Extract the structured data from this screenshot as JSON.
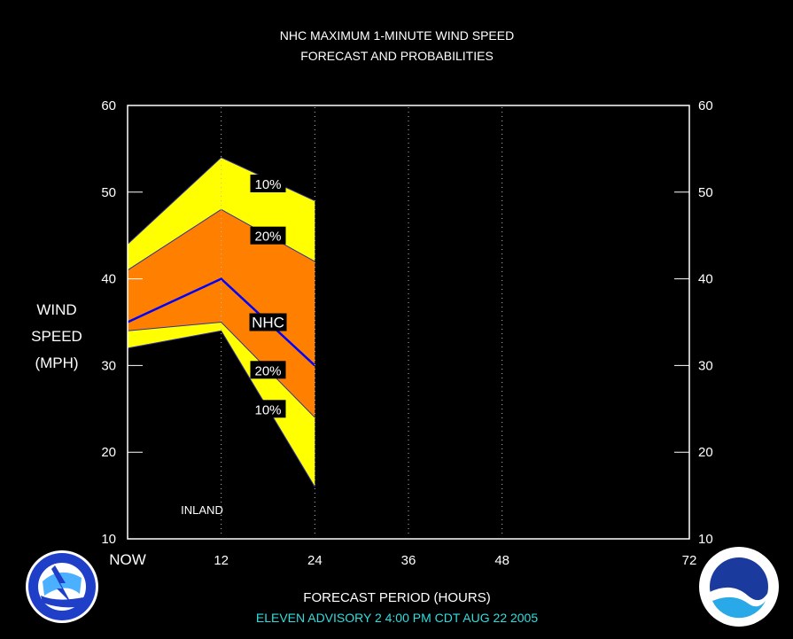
{
  "title_line1": "NHC MAXIMUM 1-MINUTE WIND SPEED",
  "title_line2": "FORECAST AND PROBABILITIES",
  "ylabel_lines": [
    "WIND",
    "SPEED",
    "(MPH)"
  ],
  "xlabel": "FORECAST PERIOD (HOURS)",
  "footer": "ELEVEN    ADVISORY  2  4:00  PM  CDT  AUG  22  2005",
  "annotation": "INLAND",
  "chart_data": {
    "type": "area",
    "x_ticks": [
      0,
      12,
      24,
      36,
      48,
      72
    ],
    "x_tick_labels": [
      "NOW",
      "12",
      "24",
      "36",
      "48",
      "72"
    ],
    "y_ticks": [
      10,
      20,
      30,
      40,
      50,
      60
    ],
    "xlim": [
      0,
      72
    ],
    "ylim": [
      10,
      60
    ],
    "x": [
      0,
      12,
      24
    ],
    "series": [
      {
        "name": "10%",
        "band": "upper",
        "values": [
          44,
          54,
          49
        ]
      },
      {
        "name": "20%",
        "band": "upper",
        "values": [
          41,
          48,
          42
        ]
      },
      {
        "name": "NHC",
        "values": [
          35,
          40,
          30
        ]
      },
      {
        "name": "20%",
        "band": "lower",
        "values": [
          34,
          35,
          24
        ]
      },
      {
        "name": "10%",
        "band": "lower",
        "values": [
          32,
          34,
          16
        ]
      }
    ],
    "band_colors": {
      "outer": "#ffff00",
      "inner": "#ff8000",
      "forecast": "#0000ff"
    },
    "grid": "dotted vertical at 12, 24, 36, 48",
    "label_positions_hours": [
      18,
      18,
      18,
      18,
      18
    ],
    "label_values": [
      51,
      45,
      35,
      29.5,
      25
    ]
  }
}
